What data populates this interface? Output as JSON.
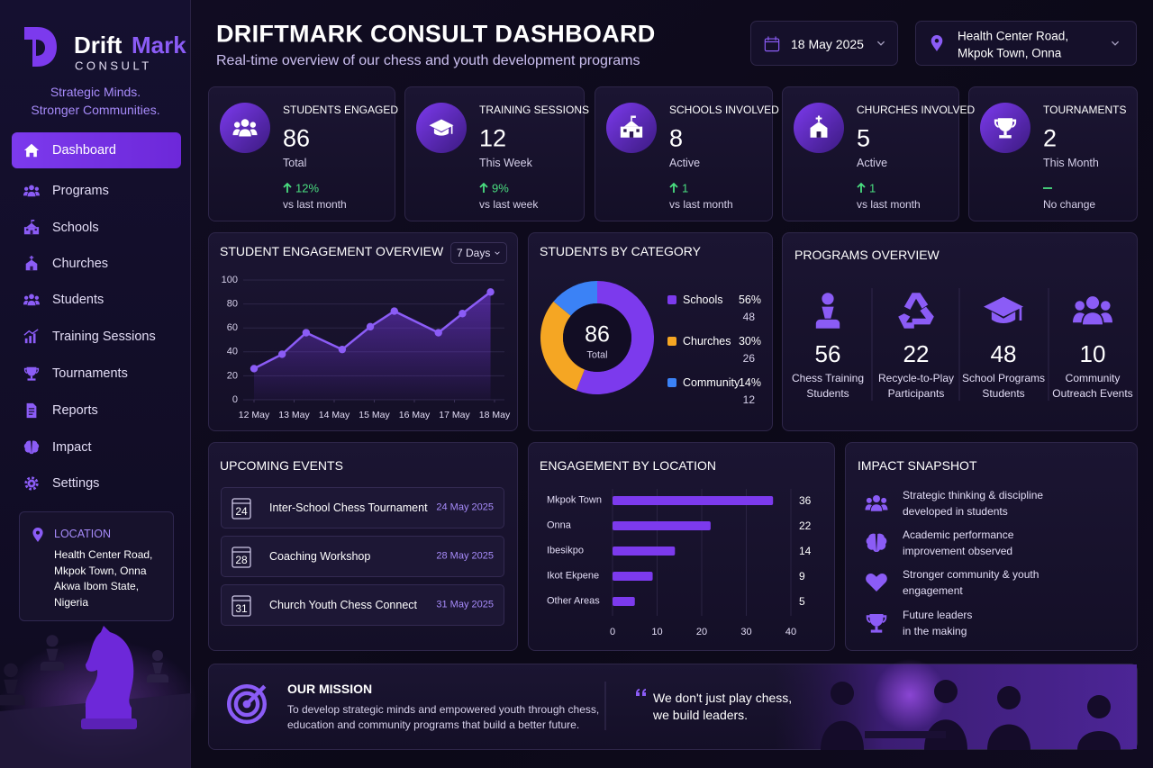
{
  "brand": {
    "name_parts": [
      "Drift",
      "Mark"
    ],
    "sub": "CONSULT",
    "tagline": [
      "Strategic Minds.",
      "Stronger Communities."
    ]
  },
  "nav": {
    "items": [
      "Dashboard",
      "Programs",
      "Schools",
      "Churches",
      "Students",
      "Training Sessions",
      "Tournaments",
      "Reports",
      "Impact",
      "Settings"
    ],
    "active": 0
  },
  "location_card": {
    "title": "LOCATION",
    "lines": [
      "Health Center Road,",
      "Mkpok Town, Onna",
      "Akwa Ibom State,",
      "Nigeria"
    ]
  },
  "header": {
    "title": "DRIFTMARK CONSULT DASHBOARD",
    "subtitle": "Real-time overview of our chess and youth development programs",
    "date": "18 May 2025",
    "location": [
      "Health Center Road,",
      "Mkpok Town, Onna"
    ]
  },
  "kpis": [
    {
      "label": "STUDENTS ENGAGED",
      "value": 86,
      "sub": "Total",
      "change": "12%",
      "compare": "vs last month",
      "trend": "up"
    },
    {
      "label": "TRAINING SESSIONS",
      "value": 12,
      "sub": "This Week",
      "change": "9%",
      "compare": "vs last week",
      "trend": "up"
    },
    {
      "label": "SCHOOLS INVOLVED",
      "value": 8,
      "sub": "Active",
      "change": "1",
      "compare": "vs last month",
      "trend": "up"
    },
    {
      "label": "CHURCHES INVOLVED",
      "value": 5,
      "sub": "Active",
      "change": "1",
      "compare": "vs last month",
      "trend": "up"
    },
    {
      "label": "TOURNAMENTS",
      "value": 2,
      "sub": "This Month",
      "change": null,
      "compare": "No change",
      "trend": "flat"
    }
  ],
  "engagement_chart": {
    "type": "line",
    "title": "STUDENT ENGAGEMENT OVERVIEW",
    "range": "7 Days",
    "x": [
      12,
      12.7,
      13.3,
      14.2,
      14.9,
      15.5,
      16.6,
      17.2,
      17.9
    ],
    "values": [
      26,
      38,
      56,
      42,
      61,
      74,
      56,
      72,
      90
    ],
    "color": "#8b5cf6",
    "xlim": [
      12,
      18
    ],
    "xticks": [
      {
        "value": 12,
        "label": "12 May"
      },
      {
        "value": 13,
        "label": "13 May"
      },
      {
        "value": 14,
        "label": "14 May"
      },
      {
        "value": 15,
        "label": "15 May"
      },
      {
        "value": 16,
        "label": "16 May"
      },
      {
        "value": 17,
        "label": "17 May"
      },
      {
        "value": 18,
        "label": "18 May"
      }
    ],
    "ylim": [
      0,
      100
    ],
    "yticks": [
      0,
      20,
      40,
      60,
      80,
      100
    ],
    "grid": true
  },
  "category_chart": {
    "type": "pie",
    "title": "STUDENTS BY CATEGORY",
    "total": 86,
    "total_label": "Total",
    "categories": [
      "Schools",
      "Churches",
      "Community"
    ],
    "values": [
      56,
      30,
      14
    ],
    "value_labels": [
      "56%",
      "30%",
      "14%"
    ],
    "counts": [
      48,
      26,
      12
    ],
    "colors": [
      "#7c3aed",
      "#f5a623",
      "#3b82f6"
    ]
  },
  "programs": {
    "title": "PROGRAMS OVERVIEW",
    "items": [
      {
        "value": 56,
        "label": [
          "Chess Training",
          "Students"
        ]
      },
      {
        "value": 22,
        "label": [
          "Recycle-to-Play",
          "Participants"
        ]
      },
      {
        "value": 48,
        "label": [
          "School Programs",
          "Students"
        ]
      },
      {
        "value": 10,
        "label": [
          "Community",
          "Outreach Events"
        ]
      }
    ]
  },
  "events": {
    "title": "UPCOMING EVENTS",
    "items": [
      {
        "day": 24,
        "name": "Inter-School Chess Tournament",
        "date": "24 May 2025"
      },
      {
        "day": 28,
        "name": "Coaching Workshop",
        "date": "28 May 2025"
      },
      {
        "day": 31,
        "name": "Church Youth Chess Connect",
        "date": "31 May 2025"
      }
    ]
  },
  "location_chart": {
    "type": "bar",
    "orientation": "horizontal",
    "title": "ENGAGEMENT BY LOCATION",
    "categories": [
      "Mkpok Town",
      "Onna",
      "Ibesikpo",
      "Ikot Ekpene",
      "Other Areas"
    ],
    "values": [
      36,
      22,
      14,
      9,
      5
    ],
    "color": "#7c3aed",
    "xlim": [
      0,
      40
    ],
    "xticks": [
      0,
      10,
      20,
      30,
      40
    ],
    "grid": true
  },
  "impact": {
    "title": "IMPACT SNAPSHOT",
    "items": [
      [
        "Strategic thinking & discipline",
        "developed in students"
      ],
      [
        "Academic performance",
        "improvement observed"
      ],
      [
        "Stronger community & youth",
        "engagement"
      ],
      [
        "Future leaders",
        "in the making"
      ]
    ]
  },
  "mission": {
    "title": "OUR MISSION",
    "text": [
      "To develop strategic minds and empowered youth through chess,",
      "education and community programs that build a better future."
    ],
    "quote": [
      "We don't just play chess,",
      "we build leaders."
    ]
  }
}
